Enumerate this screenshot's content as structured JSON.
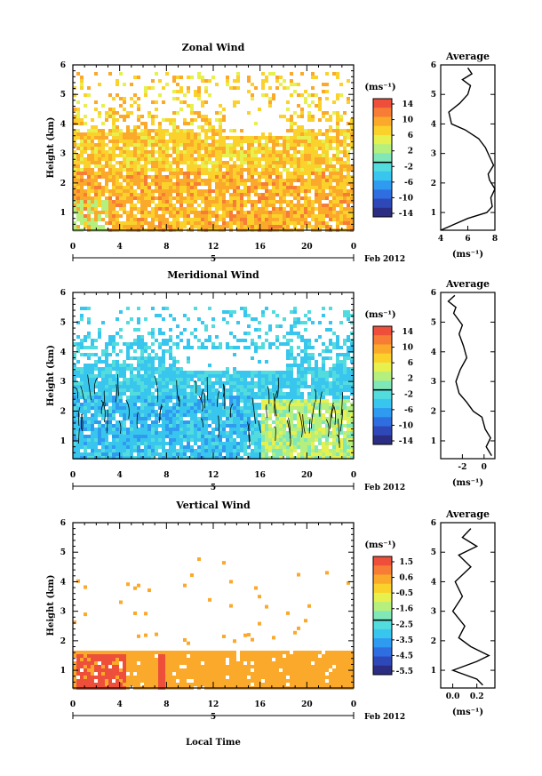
{
  "chart_data": [
    {
      "type": "heatmap",
      "title": "Zonal Wind",
      "ylabel": "Height (km)",
      "xlabel": "",
      "x_ticks": [
        "0",
        "4",
        "8",
        "12",
        "16",
        "20",
        "0"
      ],
      "y_ticks": [
        "1",
        "2",
        "3",
        "4",
        "5",
        "6"
      ],
      "xlim": [
        0,
        24
      ],
      "ylim": [
        0.4,
        6
      ],
      "date_marker": "5",
      "month_label": "Feb 2012",
      "colorbar": {
        "unit": "(ms⁻¹)",
        "ticks": [
          "14",
          "10",
          "6",
          "2",
          "-2",
          "-6",
          "-10",
          "-14"
        ],
        "range": [
          -16,
          16
        ]
      },
      "contours": false,
      "cells_fill_from": 0.3,
      "cells_to": 5.8,
      "average_profile": {
        "title": "Average",
        "xlabel": "(ms⁻¹)",
        "x_ticks": [
          "4",
          "6",
          "8"
        ],
        "xlim": [
          4,
          8
        ],
        "points": [
          [
            4.0,
            0.4
          ],
          [
            6.0,
            0.8
          ],
          [
            7.4,
            1.0
          ],
          [
            7.8,
            1.2
          ],
          [
            7.7,
            1.5
          ],
          [
            8.0,
            1.8
          ],
          [
            7.6,
            2.1
          ],
          [
            7.5,
            2.3
          ],
          [
            7.9,
            2.6
          ],
          [
            7.6,
            2.9
          ],
          [
            7.3,
            3.2
          ],
          [
            6.8,
            3.5
          ],
          [
            5.8,
            3.8
          ],
          [
            4.8,
            4.0
          ],
          [
            4.6,
            4.4
          ],
          [
            5.4,
            4.7
          ],
          [
            6.0,
            5.0
          ],
          [
            6.2,
            5.3
          ],
          [
            5.6,
            5.5
          ],
          [
            6.3,
            5.7
          ],
          [
            6.0,
            5.9
          ]
        ]
      }
    },
    {
      "type": "heatmap",
      "title": "Meridional Wind",
      "ylabel": "Height (km)",
      "xlabel": "",
      "x_ticks": [
        "0",
        "4",
        "8",
        "12",
        "16",
        "20",
        "0"
      ],
      "y_ticks": [
        "1",
        "2",
        "3",
        "4",
        "5",
        "6"
      ],
      "xlim": [
        0,
        24
      ],
      "ylim": [
        0.4,
        6
      ],
      "date_marker": "5",
      "month_label": "Feb 2012",
      "colorbar": {
        "unit": "(ms⁻¹)",
        "ticks": [
          "14",
          "10",
          "6",
          "2",
          "-2",
          "-6",
          "-10",
          "-14"
        ],
        "range": [
          -16,
          16
        ]
      },
      "contours": true,
      "cells_fill_from": 0.3,
      "cells_to": 5.6,
      "average_profile": {
        "title": "Average",
        "xlabel": "(ms⁻¹)",
        "x_ticks": [
          "-2",
          "0"
        ],
        "xlim": [
          -4,
          1
        ],
        "points": [
          [
            0.7,
            0.5
          ],
          [
            0.2,
            0.8
          ],
          [
            0.6,
            1.1
          ],
          [
            0.1,
            1.4
          ],
          [
            -0.2,
            1.8
          ],
          [
            -1.0,
            2.0
          ],
          [
            -1.6,
            2.3
          ],
          [
            -2.3,
            2.6
          ],
          [
            -2.6,
            3.0
          ],
          [
            -2.2,
            3.4
          ],
          [
            -1.6,
            3.8
          ],
          [
            -1.9,
            4.2
          ],
          [
            -2.3,
            4.6
          ],
          [
            -2.0,
            4.9
          ],
          [
            -2.8,
            5.3
          ],
          [
            -2.6,
            5.5
          ],
          [
            -3.3,
            5.7
          ],
          [
            -2.7,
            5.9
          ]
        ]
      }
    },
    {
      "type": "heatmap",
      "title": "Vertical Wind",
      "ylabel": "Height (km)",
      "xlabel": "Local Time",
      "x_ticks": [
        "0",
        "4",
        "8",
        "12",
        "16",
        "20",
        "0"
      ],
      "y_ticks": [
        "1",
        "2",
        "3",
        "4",
        "5",
        "6"
      ],
      "xlim": [
        0,
        24
      ],
      "ylim": [
        0.4,
        6
      ],
      "date_marker": "5",
      "month_label": "Feb 2012",
      "colorbar": {
        "unit": "(ms⁻¹)",
        "ticks": [
          "1.5",
          "0.6",
          "-0.5",
          "-1.6",
          "-2.5",
          "-3.5",
          "-4.5",
          "-5.5"
        ],
        "range": [
          -6,
          2
        ]
      },
      "contours": false,
      "cells_fill_from": 0.3,
      "cells_to": 1.7,
      "average_profile": {
        "title": "Average",
        "xlabel": "(ms⁻¹)",
        "x_ticks": [
          "0.0",
          "0.2"
        ],
        "xlim": [
          -0.1,
          0.35
        ],
        "points": [
          [
            0.25,
            0.5
          ],
          [
            0.2,
            0.7
          ],
          [
            0.0,
            1.0
          ],
          [
            0.2,
            1.3
          ],
          [
            0.3,
            1.5
          ],
          [
            0.15,
            1.8
          ],
          [
            0.05,
            2.1
          ],
          [
            0.1,
            2.5
          ],
          [
            0.0,
            3.0
          ],
          [
            0.08,
            3.5
          ],
          [
            0.02,
            4.0
          ],
          [
            0.15,
            4.5
          ],
          [
            0.05,
            4.9
          ],
          [
            0.2,
            5.2
          ],
          [
            0.08,
            5.5
          ],
          [
            0.15,
            5.8
          ]
        ]
      }
    }
  ]
}
